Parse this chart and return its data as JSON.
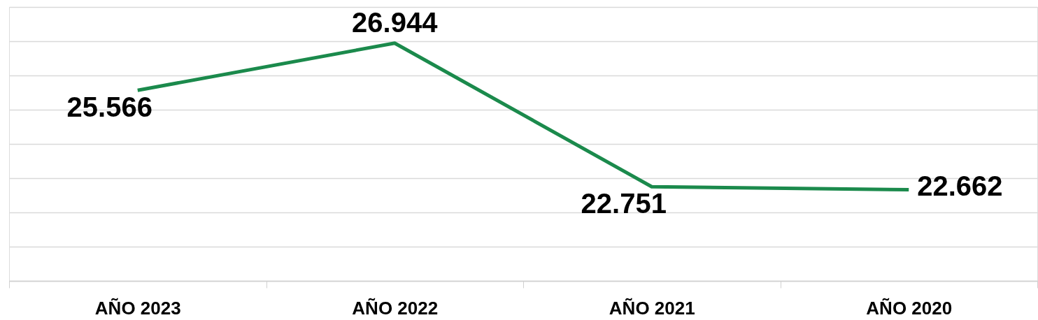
{
  "chart_data": {
    "type": "line",
    "categories": [
      "AÑO 2023",
      "AÑO 2022",
      "AÑO 2021",
      "AÑO 2020"
    ],
    "series": [
      {
        "color": "#1b8a4c",
        "values": [
          25566,
          26944,
          22751,
          22662
        ],
        "value_labels": [
          "25.566",
          "26.944",
          "22.751",
          "22.662"
        ]
      }
    ],
    "ylim": [
      20000,
      28000
    ],
    "yticks": [
      {
        "value": 20000,
        "label": null
      },
      {
        "value": 21000,
        "label": null
      },
      {
        "value": 22000,
        "label": null
      },
      {
        "value": 23000,
        "label": null
      },
      {
        "value": 24000,
        "label": null
      },
      {
        "value": 25000,
        "label": null
      },
      {
        "value": 26000,
        "label": null
      },
      {
        "value": 27000,
        "label": null
      },
      {
        "value": 28000,
        "label": null
      }
    ],
    "grid": "y",
    "tick_labels": "x",
    "marker": "none",
    "line_style": "solid"
  }
}
